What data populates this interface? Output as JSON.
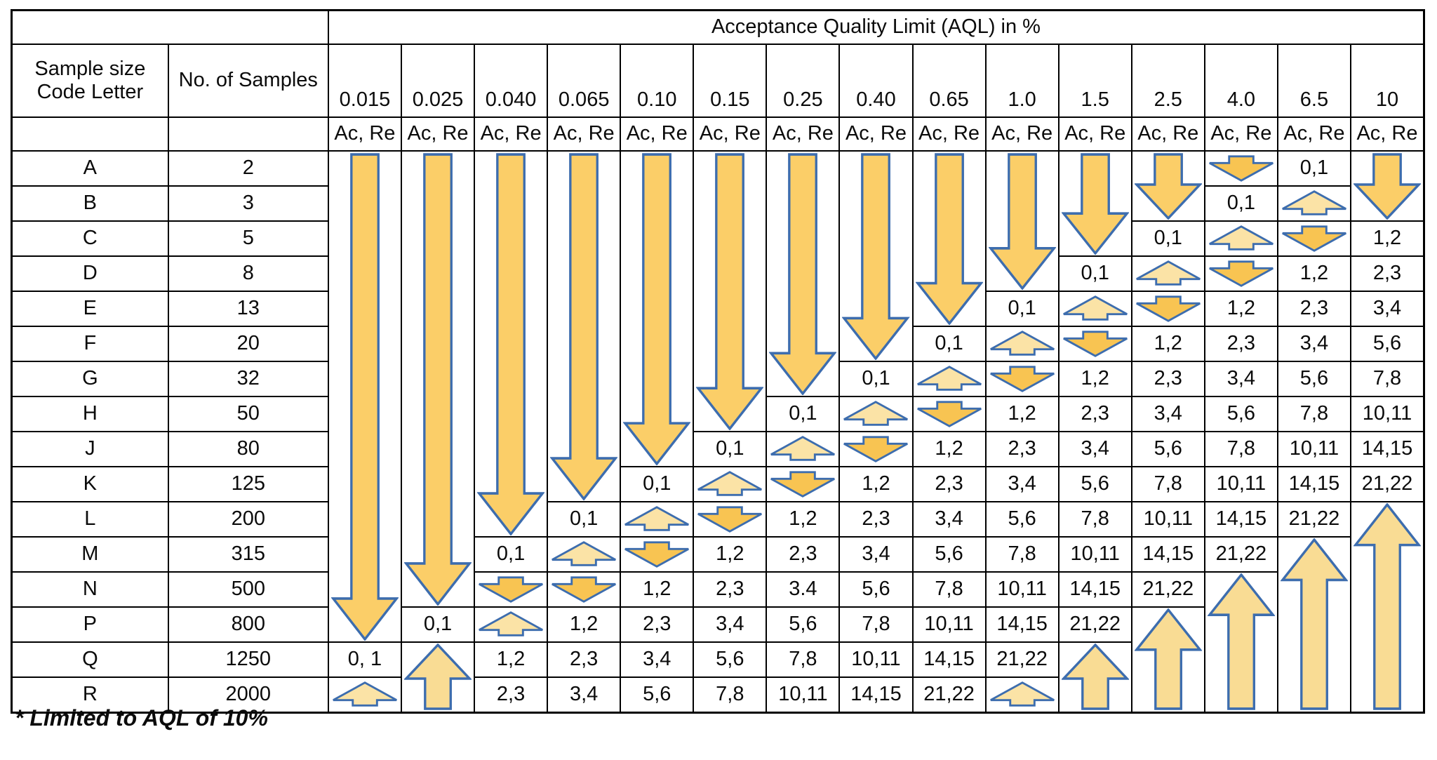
{
  "table": {
    "title": "Acceptance Quality Limit (AQL) in %",
    "col1_header_line1": "Sample size",
    "col1_header_line2": "Code Letter",
    "col2_header": "No. of Samples",
    "ac_re_label": "Ac, Re",
    "aql_columns": [
      "0.015",
      "0.025",
      "0.040",
      "0.065",
      "0.10",
      "0.15",
      "0.25",
      "0.40",
      "0.65",
      "1.0",
      "1.5",
      "2.5",
      "4.0",
      "6.5",
      "10"
    ],
    "cell_legend": {
      "D": "small down arrow (use first sampling plan below)",
      "U": "small up arrow (use first sampling plan above)",
      "LD:n": "long down arrow spanning n rows",
      "TU:n": "tall up arrow spanning n rows",
      "null": "covered by an arrow spanning from a row above"
    },
    "rows": [
      {
        "letter": "A",
        "samples": "2",
        "cells": [
          "LD:14",
          "LD:13",
          "LD:11",
          "LD:10",
          "LD:9",
          "LD:8",
          "LD:7",
          "LD:6",
          "LD:5",
          "LD:4",
          "LD:3",
          "LD:2",
          "D",
          "0,1",
          "LD:2"
        ]
      },
      {
        "letter": "B",
        "samples": "3",
        "cells": [
          null,
          null,
          null,
          null,
          null,
          null,
          null,
          null,
          null,
          null,
          null,
          null,
          "0,1",
          "U",
          null
        ]
      },
      {
        "letter": "C",
        "samples": "5",
        "cells": [
          null,
          null,
          null,
          null,
          null,
          null,
          null,
          null,
          null,
          null,
          null,
          "0,1",
          "U",
          "D",
          "1,2"
        ]
      },
      {
        "letter": "D",
        "samples": "8",
        "cells": [
          null,
          null,
          null,
          null,
          null,
          null,
          null,
          null,
          null,
          null,
          "0,1",
          "U",
          "D",
          "1,2",
          "2,3"
        ]
      },
      {
        "letter": "E",
        "samples": "13",
        "cells": [
          null,
          null,
          null,
          null,
          null,
          null,
          null,
          null,
          null,
          "0,1",
          "U",
          "D",
          "1,2",
          "2,3",
          "3,4"
        ]
      },
      {
        "letter": "F",
        "samples": "20",
        "cells": [
          null,
          null,
          null,
          null,
          null,
          null,
          null,
          null,
          "0,1",
          "U",
          "D",
          "1,2",
          "2,3",
          "3,4",
          "5,6"
        ]
      },
      {
        "letter": "G",
        "samples": "32",
        "cells": [
          null,
          null,
          null,
          null,
          null,
          null,
          null,
          "0,1",
          "U",
          "D",
          "1,2",
          "2,3",
          "3,4",
          "5,6",
          "7,8"
        ]
      },
      {
        "letter": "H",
        "samples": "50",
        "cells": [
          null,
          null,
          null,
          null,
          null,
          null,
          "0,1",
          "U",
          "D",
          "1,2",
          "2,3",
          "3,4",
          "5,6",
          "7,8",
          "10,11"
        ]
      },
      {
        "letter": "J",
        "samples": "80",
        "cells": [
          null,
          null,
          null,
          null,
          null,
          "0,1",
          "U",
          "D",
          "1,2",
          "2,3",
          "3,4",
          "5,6",
          "7,8",
          "10,11",
          "14,15"
        ]
      },
      {
        "letter": "K",
        "samples": "125",
        "cells": [
          null,
          null,
          null,
          null,
          "0,1",
          "U",
          "D",
          "1,2",
          "2,3",
          "3,4",
          "5,6",
          "7,8",
          "10,11",
          "14,15",
          "21,22"
        ]
      },
      {
        "letter": "L",
        "samples": "200",
        "cells": [
          null,
          null,
          null,
          "0,1",
          "U",
          "D",
          "1,2",
          "2,3",
          "3,4",
          "5,6",
          "7,8",
          "10,11",
          "14,15",
          "21,22",
          "TU:6"
        ]
      },
      {
        "letter": "M",
        "samples": "315",
        "cells": [
          null,
          null,
          "0,1",
          "U",
          "D",
          "1,2",
          "2,3",
          "3,4",
          "5,6",
          "7,8",
          "10,11",
          "14,15",
          "21,22",
          "TU:5",
          null
        ]
      },
      {
        "letter": "N",
        "samples": "500",
        "cells": [
          null,
          null,
          "D",
          "D",
          "1,2",
          "2,3",
          "3.4",
          "5,6",
          "7,8",
          "10,11",
          "14,15",
          "21,22",
          "TU:4",
          null,
          null
        ]
      },
      {
        "letter": "P",
        "samples": "800",
        "cells": [
          null,
          "0,1",
          "U",
          "1,2",
          "2,3",
          "3,4",
          "5,6",
          "7,8",
          "10,11",
          "14,15",
          "21,22",
          "TU:3",
          null,
          null,
          null
        ]
      },
      {
        "letter": "Q",
        "samples": "1250",
        "cells": [
          "0, 1",
          "TU:2",
          "1,2",
          "2,3",
          "3,4",
          "5,6",
          "7,8",
          "10,11",
          "14,15",
          "21,22",
          "TU:2",
          null,
          null,
          null,
          null
        ]
      },
      {
        "letter": "R",
        "samples": "2000",
        "cells": [
          "U",
          null,
          "2,3",
          "3,4",
          "5,6",
          "7,8",
          "10,11",
          "14,15",
          "21,22",
          "U",
          null,
          null,
          null,
          null,
          null
        ]
      }
    ]
  },
  "footnote": "* Limited to AQL of 10%",
  "colors": {
    "background": "#FFFFFF",
    "grid_line": "#000000",
    "text": "#0B0B0B",
    "arrow_outline": "#3D6DAE",
    "arrow_long_down_fill": "#FBCE68",
    "arrow_down_fill": "#F8C452",
    "arrow_up_fill": "#FBE3A6",
    "arrow_tall_up_fill": "#F9DC94"
  }
}
